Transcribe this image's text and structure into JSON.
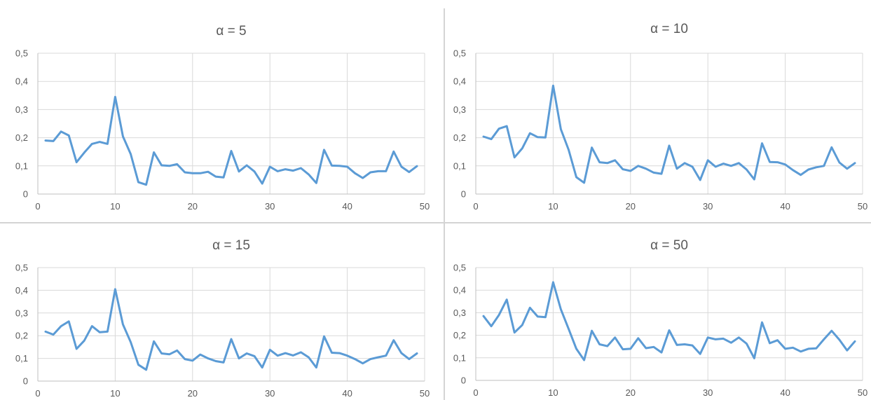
{
  "chart_data": [
    {
      "type": "line",
      "title": "α = 5",
      "xlim": [
        0,
        50
      ],
      "ylim": [
        0,
        0.5
      ],
      "x_ticks": [
        "0",
        "10",
        "20",
        "30",
        "40",
        "50"
      ],
      "y_ticks": [
        "0",
        "0,1",
        "0,2",
        "0,3",
        "0,4",
        "0,5"
      ],
      "grid": true,
      "color": "#5b9bd5",
      "x": [
        1,
        2,
        3,
        4,
        5,
        6,
        7,
        8,
        9,
        10,
        11,
        12,
        13,
        14,
        15,
        16,
        17,
        18,
        19,
        20,
        21,
        22,
        23,
        24,
        25,
        26,
        27,
        28,
        29,
        30,
        31,
        32,
        33,
        34,
        35,
        36,
        37,
        38,
        39,
        40,
        41,
        42,
        43,
        44,
        45,
        46,
        47,
        48,
        49
      ],
      "values": [
        0.19,
        0.188,
        0.222,
        0.208,
        0.113,
        0.147,
        0.178,
        0.185,
        0.178,
        0.345,
        0.205,
        0.142,
        0.042,
        0.033,
        0.148,
        0.102,
        0.1,
        0.106,
        0.077,
        0.074,
        0.074,
        0.079,
        0.062,
        0.059,
        0.153,
        0.08,
        0.102,
        0.08,
        0.037,
        0.097,
        0.081,
        0.088,
        0.083,
        0.092,
        0.07,
        0.039,
        0.157,
        0.101,
        0.1,
        0.097,
        0.074,
        0.057,
        0.077,
        0.081,
        0.081,
        0.151,
        0.097,
        0.078,
        0.099
      ]
    },
    {
      "type": "line",
      "title": "α = 10",
      "xlim": [
        0,
        50
      ],
      "ylim": [
        0,
        0.5
      ],
      "x_ticks": [
        "0",
        "10",
        "20",
        "30",
        "40",
        "50"
      ],
      "y_ticks": [
        "0",
        "0,1",
        "0,2",
        "0,3",
        "0,4",
        "0,5"
      ],
      "grid": true,
      "color": "#5b9bd5",
      "x": [
        1,
        2,
        3,
        4,
        5,
        6,
        7,
        8,
        9,
        10,
        11,
        12,
        13,
        14,
        15,
        16,
        17,
        18,
        19,
        20,
        21,
        22,
        23,
        24,
        25,
        26,
        27,
        28,
        29,
        30,
        31,
        32,
        33,
        34,
        35,
        36,
        37,
        38,
        39,
        40,
        41,
        42,
        43,
        44,
        45,
        46,
        47,
        48,
        49
      ],
      "values": [
        0.204,
        0.195,
        0.232,
        0.241,
        0.13,
        0.162,
        0.216,
        0.202,
        0.201,
        0.385,
        0.23,
        0.157,
        0.06,
        0.04,
        0.165,
        0.113,
        0.11,
        0.12,
        0.088,
        0.082,
        0.1,
        0.09,
        0.076,
        0.072,
        0.172,
        0.09,
        0.11,
        0.097,
        0.05,
        0.12,
        0.097,
        0.108,
        0.1,
        0.11,
        0.087,
        0.052,
        0.18,
        0.114,
        0.113,
        0.105,
        0.085,
        0.068,
        0.087,
        0.095,
        0.1,
        0.166,
        0.112,
        0.09,
        0.11
      ]
    },
    {
      "type": "line",
      "title": "α = 15",
      "xlim": [
        0,
        50
      ],
      "ylim": [
        0,
        0.5
      ],
      "x_ticks": [
        "0",
        "10",
        "20",
        "30",
        "40",
        "50"
      ],
      "y_ticks": [
        "0",
        "0,1",
        "0,2",
        "0,3",
        "0,4",
        "0,5"
      ],
      "grid": true,
      "color": "#5b9bd5",
      "x": [
        1,
        2,
        3,
        4,
        5,
        6,
        7,
        8,
        9,
        10,
        11,
        12,
        13,
        14,
        15,
        16,
        17,
        18,
        19,
        20,
        21,
        22,
        23,
        24,
        25,
        26,
        27,
        28,
        29,
        30,
        31,
        32,
        33,
        34,
        35,
        36,
        37,
        38,
        39,
        40,
        41,
        42,
        43,
        44,
        45,
        46,
        47,
        48,
        49
      ],
      "values": [
        0.218,
        0.205,
        0.242,
        0.263,
        0.142,
        0.178,
        0.242,
        0.215,
        0.218,
        0.405,
        0.25,
        0.172,
        0.072,
        0.05,
        0.175,
        0.122,
        0.118,
        0.135,
        0.097,
        0.09,
        0.117,
        0.1,
        0.088,
        0.082,
        0.185,
        0.1,
        0.122,
        0.11,
        0.06,
        0.138,
        0.112,
        0.123,
        0.113,
        0.127,
        0.105,
        0.06,
        0.197,
        0.125,
        0.123,
        0.112,
        0.097,
        0.078,
        0.097,
        0.105,
        0.112,
        0.18,
        0.123,
        0.097,
        0.122
      ]
    },
    {
      "type": "line",
      "title": "α = 50",
      "xlim": [
        0,
        50
      ],
      "ylim": [
        0,
        0.5
      ],
      "x_ticks": [
        "0",
        "10",
        "20",
        "30",
        "40",
        "50"
      ],
      "y_ticks": [
        "0",
        "0,1",
        "0,2",
        "0,3",
        "0,4",
        "0,5"
      ],
      "grid": true,
      "color": "#5b9bd5",
      "x": [
        1,
        2,
        3,
        4,
        5,
        6,
        7,
        8,
        9,
        10,
        11,
        12,
        13,
        14,
        15,
        16,
        17,
        18,
        19,
        20,
        21,
        22,
        23,
        24,
        25,
        26,
        27,
        28,
        29,
        30,
        31,
        32,
        33,
        34,
        35,
        36,
        37,
        38,
        39,
        40,
        41,
        42,
        43,
        44,
        45,
        46,
        47,
        48,
        49
      ],
      "values": [
        0.285,
        0.24,
        0.29,
        0.358,
        0.212,
        0.245,
        0.322,
        0.283,
        0.28,
        0.435,
        0.315,
        0.228,
        0.14,
        0.09,
        0.22,
        0.16,
        0.152,
        0.19,
        0.138,
        0.14,
        0.187,
        0.143,
        0.148,
        0.124,
        0.222,
        0.157,
        0.16,
        0.155,
        0.117,
        0.19,
        0.182,
        0.185,
        0.167,
        0.19,
        0.163,
        0.098,
        0.257,
        0.165,
        0.178,
        0.14,
        0.145,
        0.128,
        0.14,
        0.142,
        0.182,
        0.22,
        0.18,
        0.133,
        0.173
      ]
    }
  ]
}
